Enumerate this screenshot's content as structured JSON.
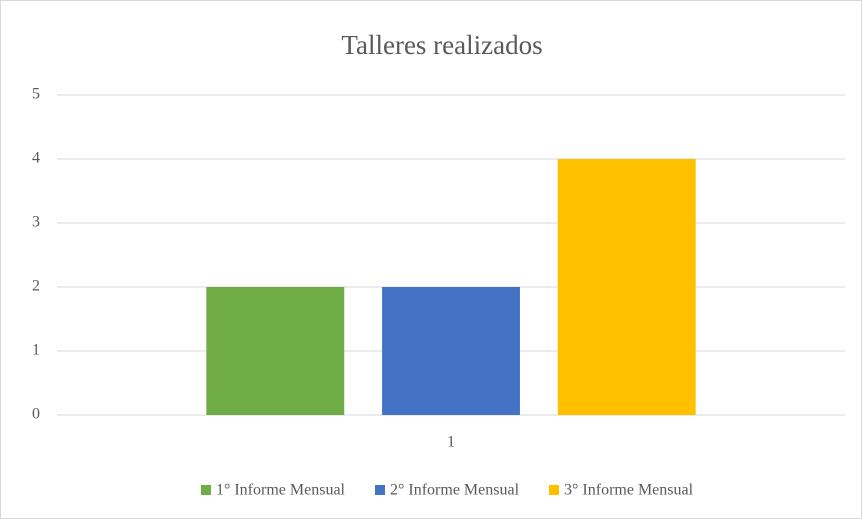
{
  "chart_data": {
    "type": "bar",
    "title": "Talleres realizados",
    "categories": [
      "1"
    ],
    "series": [
      {
        "name": "1° Informe Mensual",
        "color": "#70ad47",
        "values": [
          2
        ]
      },
      {
        "name": "2° Informe Mensual",
        "color": "#4472c4",
        "values": [
          2
        ]
      },
      {
        "name": "3° Informe Mensual",
        "color": "#ffc000",
        "values": [
          4
        ]
      }
    ],
    "ylim": [
      0,
      5
    ],
    "yticks": [
      0,
      1,
      2,
      3,
      4,
      5
    ],
    "grid": true,
    "legend": "bottom"
  }
}
